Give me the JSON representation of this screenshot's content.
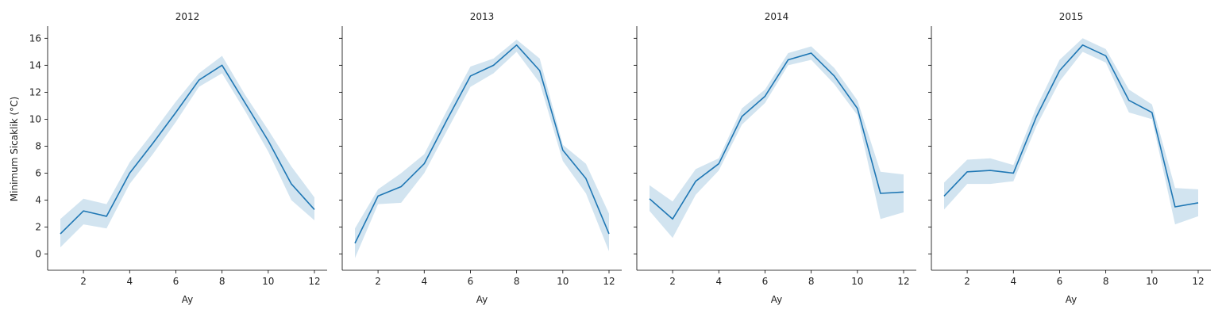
{
  "chart_data": {
    "type": "line",
    "shared_y": true,
    "ylabel": "Minimum Sicaklik (°C)",
    "ylim": [
      -1.2,
      16.9
    ],
    "xlim": [
      0.45,
      12.55
    ],
    "xticks": [
      2,
      4,
      6,
      8,
      10,
      12
    ],
    "yticks": [
      0,
      2,
      4,
      6,
      8,
      10,
      12,
      14,
      16
    ],
    "grid": false,
    "colors": {
      "line": "#1f77b4",
      "band": "#1f77b4"
    },
    "panels": [
      {
        "title": "2012",
        "xlabel": "Ay",
        "x": [
          1,
          2,
          3,
          4,
          5,
          6,
          7,
          8,
          9,
          10,
          11,
          12
        ],
        "y": [
          1.5,
          3.2,
          2.8,
          6.0,
          8.2,
          10.5,
          12.9,
          14.0,
          11.2,
          8.4,
          5.2,
          3.3
        ],
        "ci_low": [
          0.5,
          2.2,
          1.9,
          5.2,
          7.4,
          9.8,
          12.4,
          13.4,
          10.6,
          7.6,
          4.0,
          2.5
        ],
        "ci_high": [
          2.6,
          4.1,
          3.7,
          6.8,
          9.0,
          11.3,
          13.4,
          14.7,
          11.8,
          9.2,
          6.5,
          4.2
        ]
      },
      {
        "title": "2013",
        "xlabel": "Ay",
        "x": [
          1,
          2,
          3,
          4,
          5,
          6,
          7,
          8,
          9,
          10,
          11,
          12
        ],
        "y": [
          0.8,
          4.3,
          5.0,
          6.7,
          10.0,
          13.2,
          14.0,
          15.5,
          13.6,
          7.7,
          5.6,
          1.5
        ],
        "ci_low": [
          -0.3,
          3.7,
          3.8,
          6.0,
          9.2,
          12.4,
          13.4,
          15.0,
          12.7,
          6.9,
          4.5,
          0.2
        ],
        "ci_high": [
          1.9,
          4.8,
          6.0,
          7.4,
          10.7,
          13.9,
          14.5,
          15.9,
          14.5,
          8.1,
          6.7,
          3.0
        ]
      },
      {
        "title": "2014",
        "xlabel": "Ay",
        "x": [
          1,
          2,
          3,
          4,
          5,
          6,
          7,
          8,
          9,
          10,
          11,
          12
        ],
        "y": [
          4.1,
          2.6,
          5.4,
          6.7,
          10.2,
          11.7,
          14.4,
          14.9,
          13.2,
          10.8,
          4.5,
          4.6
        ],
        "ci_low": [
          3.2,
          1.2,
          4.4,
          6.2,
          9.6,
          11.2,
          14.0,
          14.4,
          12.6,
          10.3,
          2.6,
          3.1
        ],
        "ci_high": [
          5.1,
          3.9,
          6.3,
          7.1,
          10.8,
          12.2,
          14.9,
          15.4,
          13.8,
          11.4,
          6.1,
          5.9
        ]
      },
      {
        "title": "2015",
        "xlabel": "Ay",
        "x": [
          1,
          2,
          3,
          4,
          5,
          6,
          7,
          8,
          9,
          10,
          11,
          12
        ],
        "y": [
          4.3,
          6.1,
          6.2,
          6.0,
          10.2,
          13.6,
          15.5,
          14.7,
          11.4,
          10.5,
          3.5,
          3.8
        ],
        "ci_low": [
          3.3,
          5.2,
          5.2,
          5.4,
          9.5,
          12.8,
          15.0,
          14.2,
          10.5,
          10.0,
          2.2,
          2.8
        ],
        "ci_high": [
          5.3,
          7.0,
          7.1,
          6.6,
          10.9,
          14.4,
          16.0,
          15.2,
          12.2,
          11.1,
          4.9,
          4.8
        ]
      }
    ]
  }
}
